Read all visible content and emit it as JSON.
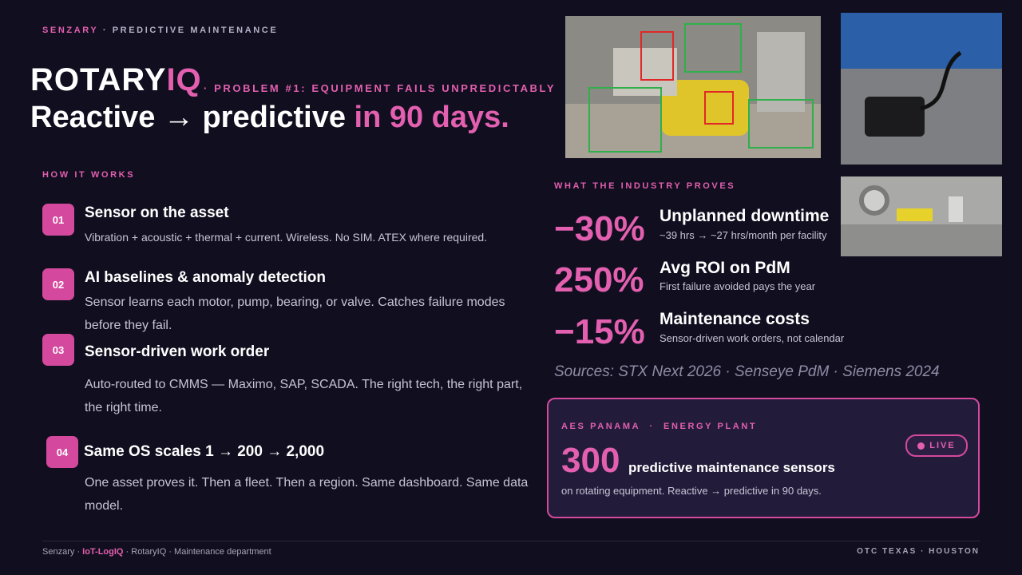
{
  "header": {
    "brand": "SENZARY",
    "eyebrow": "· PREDICTIVE MAINTENANCE",
    "title_main": "ROTARY",
    "title_accent": "IQ",
    "problem": "· PROBLEM #1: EQUIPMENT FAILS UNPREDICTABLY",
    "headline_main": "Reactive → predictive",
    "headline_accent": "in 90 days."
  },
  "how_it_works": {
    "heading": "HOW IT WORKS",
    "steps": [
      {
        "number": "01",
        "title": "Sensor on the asset",
        "description": "Vibration + acoustic + thermal + current. Wireless. No SIM. ATEX where required."
      },
      {
        "number": "02",
        "title": "AI baselines & anomaly detection",
        "description": "Sensor learns each motor, pump, bearing, or valve. Catches failure modes before they fail."
      },
      {
        "number": "03",
        "title": "Sensor-driven work order",
        "description": "Auto-routed to CMMS — Maximo, SAP, SCADA. The right tech, the right part, the right time."
      },
      {
        "number": "04",
        "title": "Same OS scales 1 → 200 → 2,000",
        "description": "One asset proves it. Then a fleet. Then a region. Same dashboard. Same data model."
      }
    ]
  },
  "industry": {
    "heading": "WHAT THE INDUSTRY PROVES",
    "stats": [
      {
        "value": "−30%",
        "label": "Unplanned downtime",
        "detail": "~39 hrs → ~27 hrs/month per facility"
      },
      {
        "value": "250%",
        "label": "Avg ROI on PdM",
        "detail": "First failure avoided pays the year"
      },
      {
        "value": "−15%",
        "label": "Maintenance costs",
        "detail": "Sensor-driven work orders, not calendar"
      }
    ],
    "sources": "Sources: STX Next 2026 · Senseye PdM · Siemens 2024"
  },
  "case": {
    "client": "AES PANAMA",
    "separator": "·",
    "site": "ENERGY PLANT",
    "status": "LIVE",
    "count": "300",
    "count_label": "predictive maintenance sensors",
    "detail": "on rotating equipment. Reactive → predictive in 90 days."
  },
  "footer": {
    "left_1": "Senzary ·",
    "left_accent": "IoT-LogIQ",
    "left_2": "· RotaryIQ · Maintenance department",
    "right": "OTC TEXAS · HOUSTON"
  }
}
